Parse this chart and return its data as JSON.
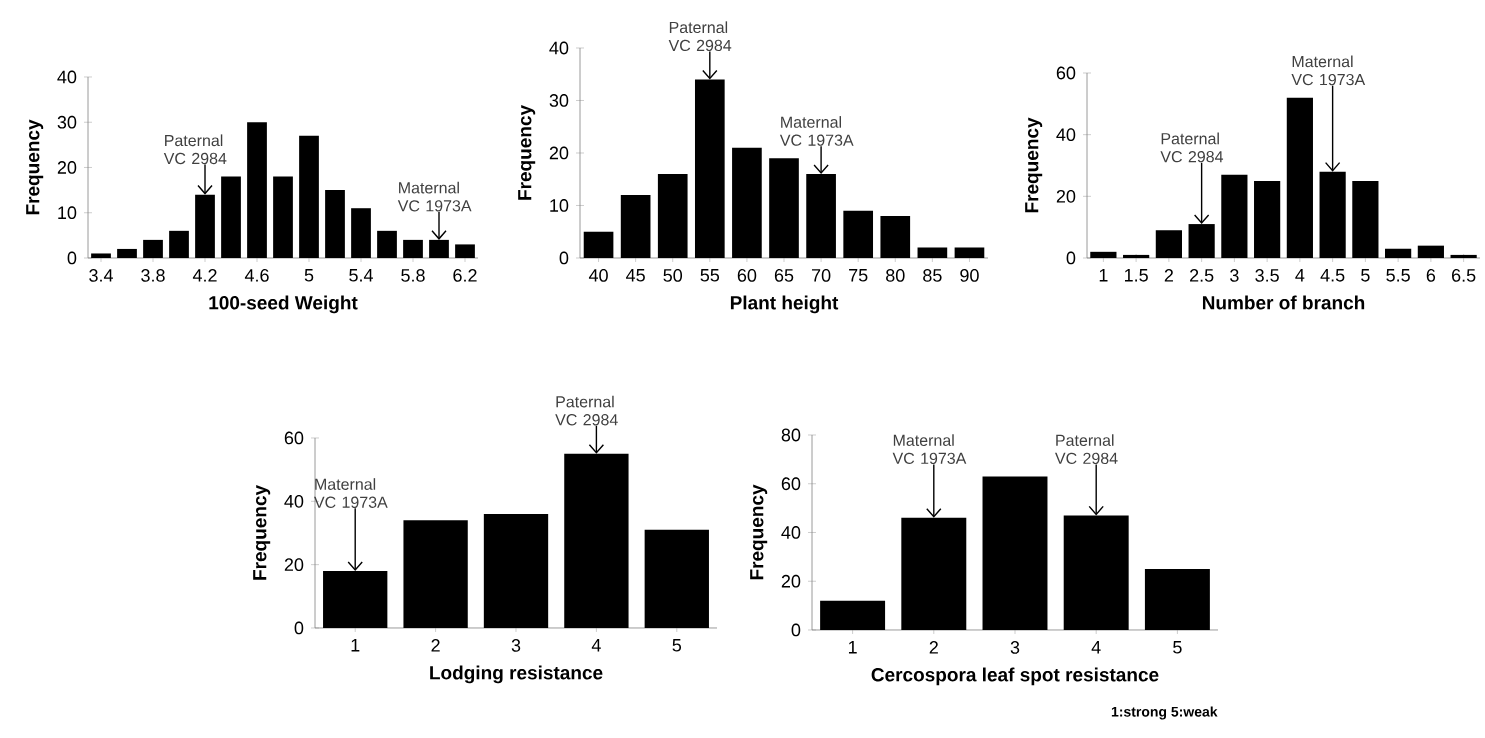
{
  "chart_data": [
    {
      "type": "bar",
      "xlabel": "100-seed Weight",
      "ylabel": "Frequency",
      "x": [
        3.4,
        3.6,
        3.8,
        4.0,
        4.2,
        4.4,
        4.6,
        4.8,
        5.0,
        5.2,
        5.4,
        5.6,
        5.8,
        6.0,
        6.2
      ],
      "xlim": [
        3.3,
        6.3
      ],
      "xticks": [
        3.4,
        3.8,
        4.2,
        4.6,
        5,
        5.4,
        5.8,
        6.2
      ],
      "values": [
        1,
        2,
        4,
        6,
        14,
        18,
        30,
        18,
        27,
        15,
        11,
        6,
        4,
        4,
        3
      ],
      "color": "#000000",
      "ylim": [
        0,
        40
      ],
      "yticks": [
        0,
        10,
        20,
        30,
        40
      ],
      "annotations": [
        {
          "text": "Paternal VC 2984",
          "x": 4.2,
          "y": 14
        },
        {
          "text": "Maternal VC 1973A",
          "x": 6.0,
          "y": 4
        }
      ]
    },
    {
      "type": "bar",
      "xlabel": "Plant height",
      "ylabel": "Frequency",
      "categories": [
        "40",
        "45",
        "50",
        "55",
        "60",
        "65",
        "70",
        "75",
        "80",
        "85",
        "90"
      ],
      "values": [
        5,
        12,
        16,
        34,
        21,
        19,
        16,
        9,
        8,
        2,
        2
      ],
      "color": "#000000",
      "ylim": [
        0,
        40
      ],
      "yticks": [
        0,
        10,
        20,
        30,
        40
      ],
      "annotations": [
        {
          "text": "Paternal VC 2984",
          "x": "55",
          "y": 34
        },
        {
          "text": "Maternal VC 1973A",
          "x": "70",
          "y": 16
        }
      ]
    },
    {
      "type": "bar",
      "xlabel": "Number of branch",
      "ylabel": "Frequency",
      "categories": [
        "1",
        "1.5",
        "2",
        "2.5",
        "3",
        "3.5",
        "4",
        "4.5",
        "5",
        "5.5",
        "6",
        "6.5"
      ],
      "values": [
        2,
        1,
        9,
        11,
        27,
        25,
        52,
        28,
        25,
        3,
        4,
        1
      ],
      "color": "#000000",
      "ylim": [
        0,
        60
      ],
      "yticks": [
        0,
        20,
        40,
        60
      ],
      "annotations": [
        {
          "text": "Paternal VC 2984",
          "x": "2.5",
          "y": 11
        },
        {
          "text": "Maternal VC 1973A",
          "x": "4.5",
          "y": 28
        }
      ]
    },
    {
      "type": "bar",
      "xlabel": "Lodging resistance",
      "ylabel": "Frequency",
      "categories": [
        "1",
        "2",
        "3",
        "4",
        "5"
      ],
      "values": [
        18,
        34,
        36,
        55,
        31
      ],
      "color": "#000000",
      "ylim": [
        0,
        60
      ],
      "yticks": [
        0,
        20,
        40,
        60
      ],
      "annotations": [
        {
          "text": "Maternal VC 1973A",
          "x": "1",
          "y": 18
        },
        {
          "text": "Paternal VC 2984",
          "x": "4",
          "y": 55
        }
      ]
    },
    {
      "type": "bar",
      "xlabel": "Cercospora leaf spot resistance",
      "ylabel": "Frequency",
      "categories": [
        "1",
        "2",
        "3",
        "4",
        "5"
      ],
      "values": [
        12,
        46,
        63,
        47,
        25
      ],
      "color": "#000000",
      "ylim": [
        0,
        80
      ],
      "yticks": [
        0,
        20,
        40,
        60,
        80
      ],
      "annotations": [
        {
          "text": "Maternal VC 1973A",
          "x": "2",
          "y": 46
        },
        {
          "text": "Paternal VC 2984",
          "x": "4",
          "y": 47
        },
        "1:strong 5:weak"
      ]
    }
  ]
}
